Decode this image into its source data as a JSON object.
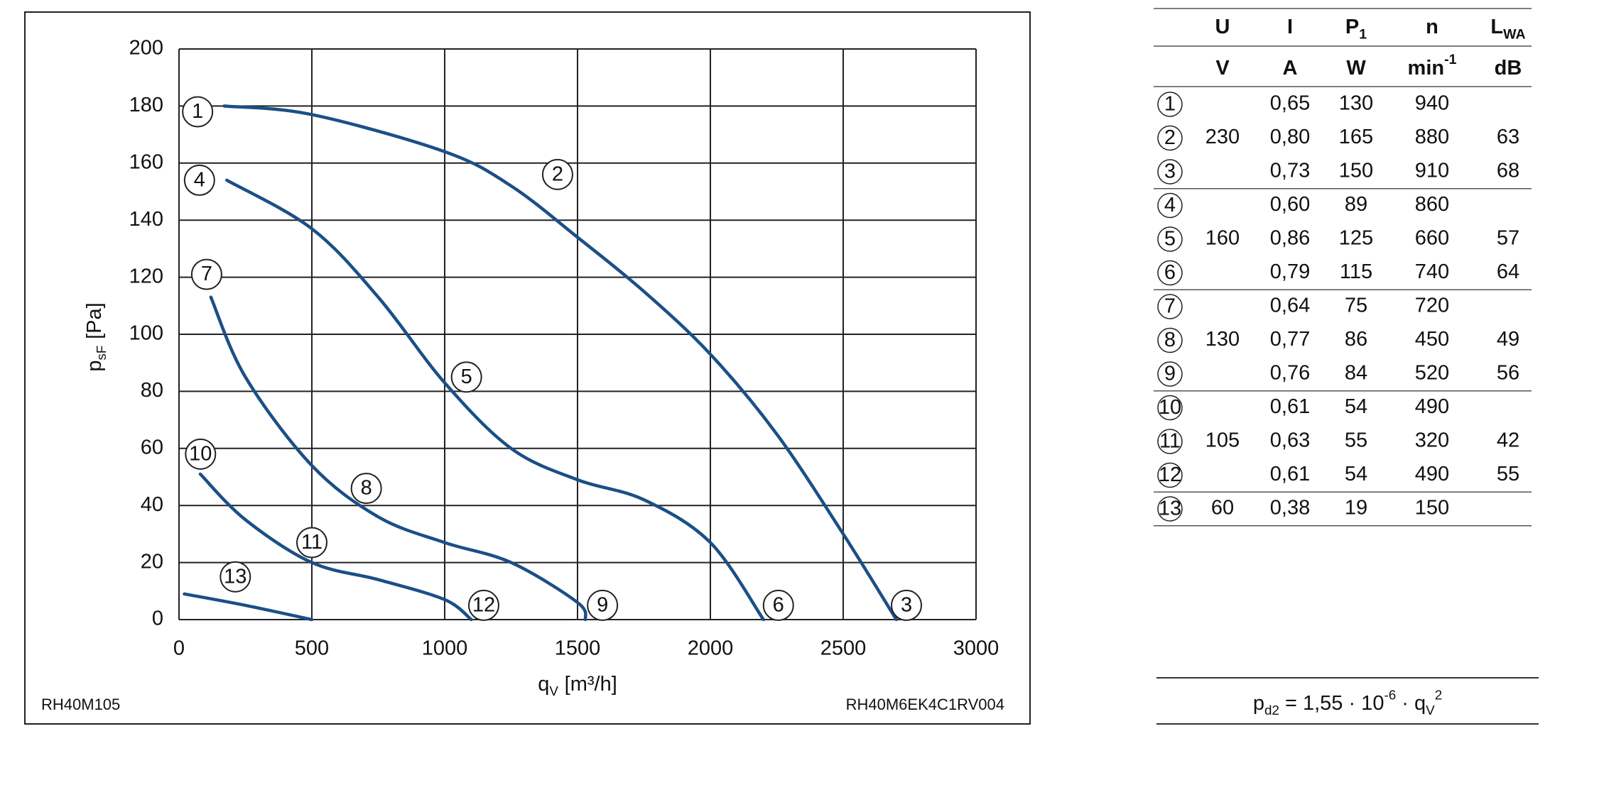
{
  "chart_data": {
    "type": "line",
    "x_label": {
      "text": "q",
      "sub": "V",
      "unit": "[m³/h]"
    },
    "y_label": {
      "text": "p",
      "sub": "sF",
      "unit": "[Pa]"
    },
    "xlim": [
      0,
      3000
    ],
    "xticks": [
      0,
      500,
      1000,
      1500,
      2000,
      2500,
      3000
    ],
    "ylim": [
      0,
      200
    ],
    "yticks": [
      0,
      20,
      40,
      60,
      80,
      100,
      120,
      140,
      160,
      180,
      200
    ],
    "grid": true,
    "series": [
      {
        "color": "#1b4f86",
        "x": [
          170,
          500,
          1000,
          1250,
          1500,
          1750,
          2000,
          2250,
          2500,
          2700
        ],
        "values": [
          180,
          177,
          164,
          152,
          134,
          115,
          93,
          65,
          30,
          0
        ]
      },
      {
        "color": "#1b4f86",
        "x": [
          180,
          500,
          750,
          1000,
          1250,
          1500,
          1750,
          2000,
          2200
        ],
        "values": [
          154,
          137,
          113,
          83,
          60,
          49,
          42,
          27,
          0
        ]
      },
      {
        "color": "#1b4f86",
        "x": [
          120,
          250,
          500,
          750,
          1000,
          1250,
          1500,
          1530
        ],
        "values": [
          113,
          85,
          54,
          36,
          27,
          20,
          6,
          0
        ]
      },
      {
        "color": "#1b4f86",
        "x": [
          80,
          250,
          500,
          750,
          1000,
          1100
        ],
        "values": [
          51,
          35,
          20,
          14,
          7,
          0
        ]
      },
      {
        "color": "#1b4f86",
        "x": [
          20,
          250,
          500
        ],
        "values": [
          9,
          5,
          0
        ]
      }
    ],
    "annotations": [
      {
        "text": "1",
        "x": 70,
        "y": 178
      },
      {
        "text": "2",
        "x": 1425,
        "y": 156
      },
      {
        "text": "3",
        "x": 2738,
        "y": 5
      },
      {
        "text": "4",
        "x": 77,
        "y": 154
      },
      {
        "text": "5",
        "x": 1082,
        "y": 85
      },
      {
        "text": "6",
        "x": 2256,
        "y": 5
      },
      {
        "text": "7",
        "x": 104,
        "y": 121
      },
      {
        "text": "8",
        "x": 705,
        "y": 46
      },
      {
        "text": "9",
        "x": 1594,
        "y": 5
      },
      {
        "text": "10",
        "x": 81,
        "y": 58
      },
      {
        "text": "11",
        "x": 500,
        "y": 27
      },
      {
        "text": "12",
        "x": 1147,
        "y": 5
      },
      {
        "text": "13",
        "x": 212,
        "y": 15
      }
    ],
    "footnote_left": "RH40M105",
    "footnote_right": "RH40M6EK4C1RV004"
  },
  "table": {
    "header": [
      {
        "text": "U"
      },
      {
        "text": "I"
      },
      {
        "text": "P",
        "sub": "1"
      },
      {
        "text": "n"
      },
      {
        "text": "L",
        "sub": "WA"
      }
    ],
    "units": [
      {
        "text": "V"
      },
      {
        "text": "A"
      },
      {
        "text": "W"
      },
      {
        "text": "min",
        "sup": "-1"
      },
      {
        "text": "dB"
      }
    ],
    "groups": [
      {
        "U": "230",
        "rows": [
          [
            "1",
            "0,65",
            "130",
            "940",
            null
          ],
          [
            "2",
            "0,80",
            "165",
            "880",
            "63"
          ],
          [
            "3",
            "0,73",
            "150",
            "910",
            "68"
          ]
        ]
      },
      {
        "U": "160",
        "rows": [
          [
            "4",
            "0,60",
            "89",
            "860",
            null
          ],
          [
            "5",
            "0,86",
            "125",
            "660",
            "57"
          ],
          [
            "6",
            "0,79",
            "115",
            "740",
            "64"
          ]
        ]
      },
      {
        "U": "130",
        "rows": [
          [
            "7",
            "0,64",
            "75",
            "720",
            null
          ],
          [
            "8",
            "0,77",
            "86",
            "450",
            "49"
          ],
          [
            "9",
            "0,76",
            "84",
            "520",
            "56"
          ]
        ]
      },
      {
        "U": "105",
        "rows": [
          [
            "10",
            "0,61",
            "54",
            "490",
            null
          ],
          [
            "11",
            "0,63",
            "55",
            "320",
            "42"
          ],
          [
            "12",
            "0,61",
            "54",
            "490",
            "55"
          ]
        ]
      },
      {
        "U": "60",
        "rows": [
          [
            "13",
            "0,38",
            "19",
            "150",
            null
          ]
        ]
      }
    ],
    "formula": [
      {
        "text": "p"
      },
      {
        "sub": "d2"
      },
      {
        "text": " = 1,55 · 10"
      },
      {
        "sup": "-6"
      },
      {
        "text": " · q"
      },
      {
        "sub": "V"
      },
      {
        "sup": "2"
      }
    ]
  }
}
